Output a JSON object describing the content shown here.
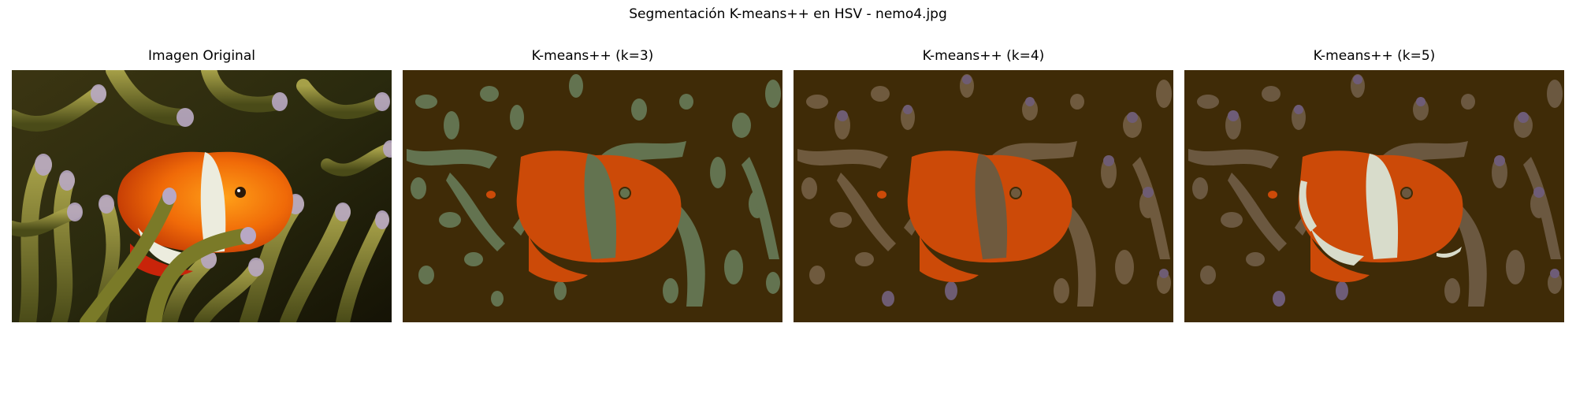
{
  "figure": {
    "suptitle": "Segmentación K-means++ en HSV - nemo4.jpg"
  },
  "panels": [
    {
      "title": "Imagen Original",
      "kind": "original"
    },
    {
      "title": "K-means++ (k=3)",
      "kind": "segmented",
      "k": 3
    },
    {
      "title": "K-means++ (k=4)",
      "kind": "segmented",
      "k": 4
    },
    {
      "title": "K-means++ (k=5)",
      "kind": "segmented",
      "k": 5
    }
  ],
  "colors": {
    "segment_background": "#3f2b07",
    "segment_orange": "#cc4a08",
    "k3_tentacle_green": "#637350",
    "k4_tentacle_tan": "#6f5a3e",
    "k4_tentacle_purple": "#6e5c73",
    "k5_tentacle_tan": "#6b5840",
    "k5_tentacle_purple": "#6e5c78",
    "k5_stripe_white": "#d8dccb",
    "photo_orange": "#f07a10",
    "photo_red": "#c9240a",
    "photo_tentacle_olive": "#8a8a30",
    "photo_tentacle_tip": "#b8a8c4",
    "photo_dark": "#1a1608"
  }
}
